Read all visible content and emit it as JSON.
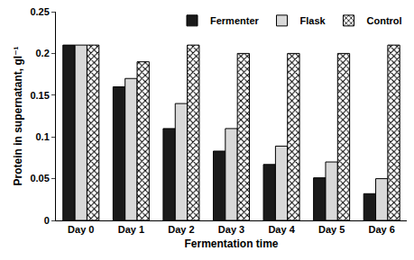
{
  "chart_data": {
    "type": "bar",
    "x_label": "Fermentation time",
    "y_label": "Protein in supernatant, gl⁻¹",
    "categories": [
      "Day 0",
      "Day 1",
      "Day 2",
      "Day 3",
      "Day 4",
      "Day 5",
      "Day 6"
    ],
    "series": [
      {
        "name": "Fermenter",
        "color": "#1a1a1a",
        "values": [
          0.21,
          0.16,
          0.11,
          0.083,
          0.067,
          0.051,
          0.032
        ]
      },
      {
        "name": "Flask",
        "color": "#d9d9d9",
        "values": [
          0.21,
          0.17,
          0.14,
          0.11,
          0.089,
          0.07,
          0.05
        ]
      },
      {
        "name": "Control",
        "color": "#000000",
        "marker": "crosshatch",
        "values": [
          0.21,
          0.19,
          0.21,
          0.2,
          0.2,
          0.2,
          0.21
        ]
      }
    ],
    "ylim": [
      0,
      0.25
    ],
    "yticks": [
      0,
      0.05,
      0.1,
      0.15,
      0.2,
      0.25
    ],
    "grid": false,
    "legend": "top-right"
  }
}
